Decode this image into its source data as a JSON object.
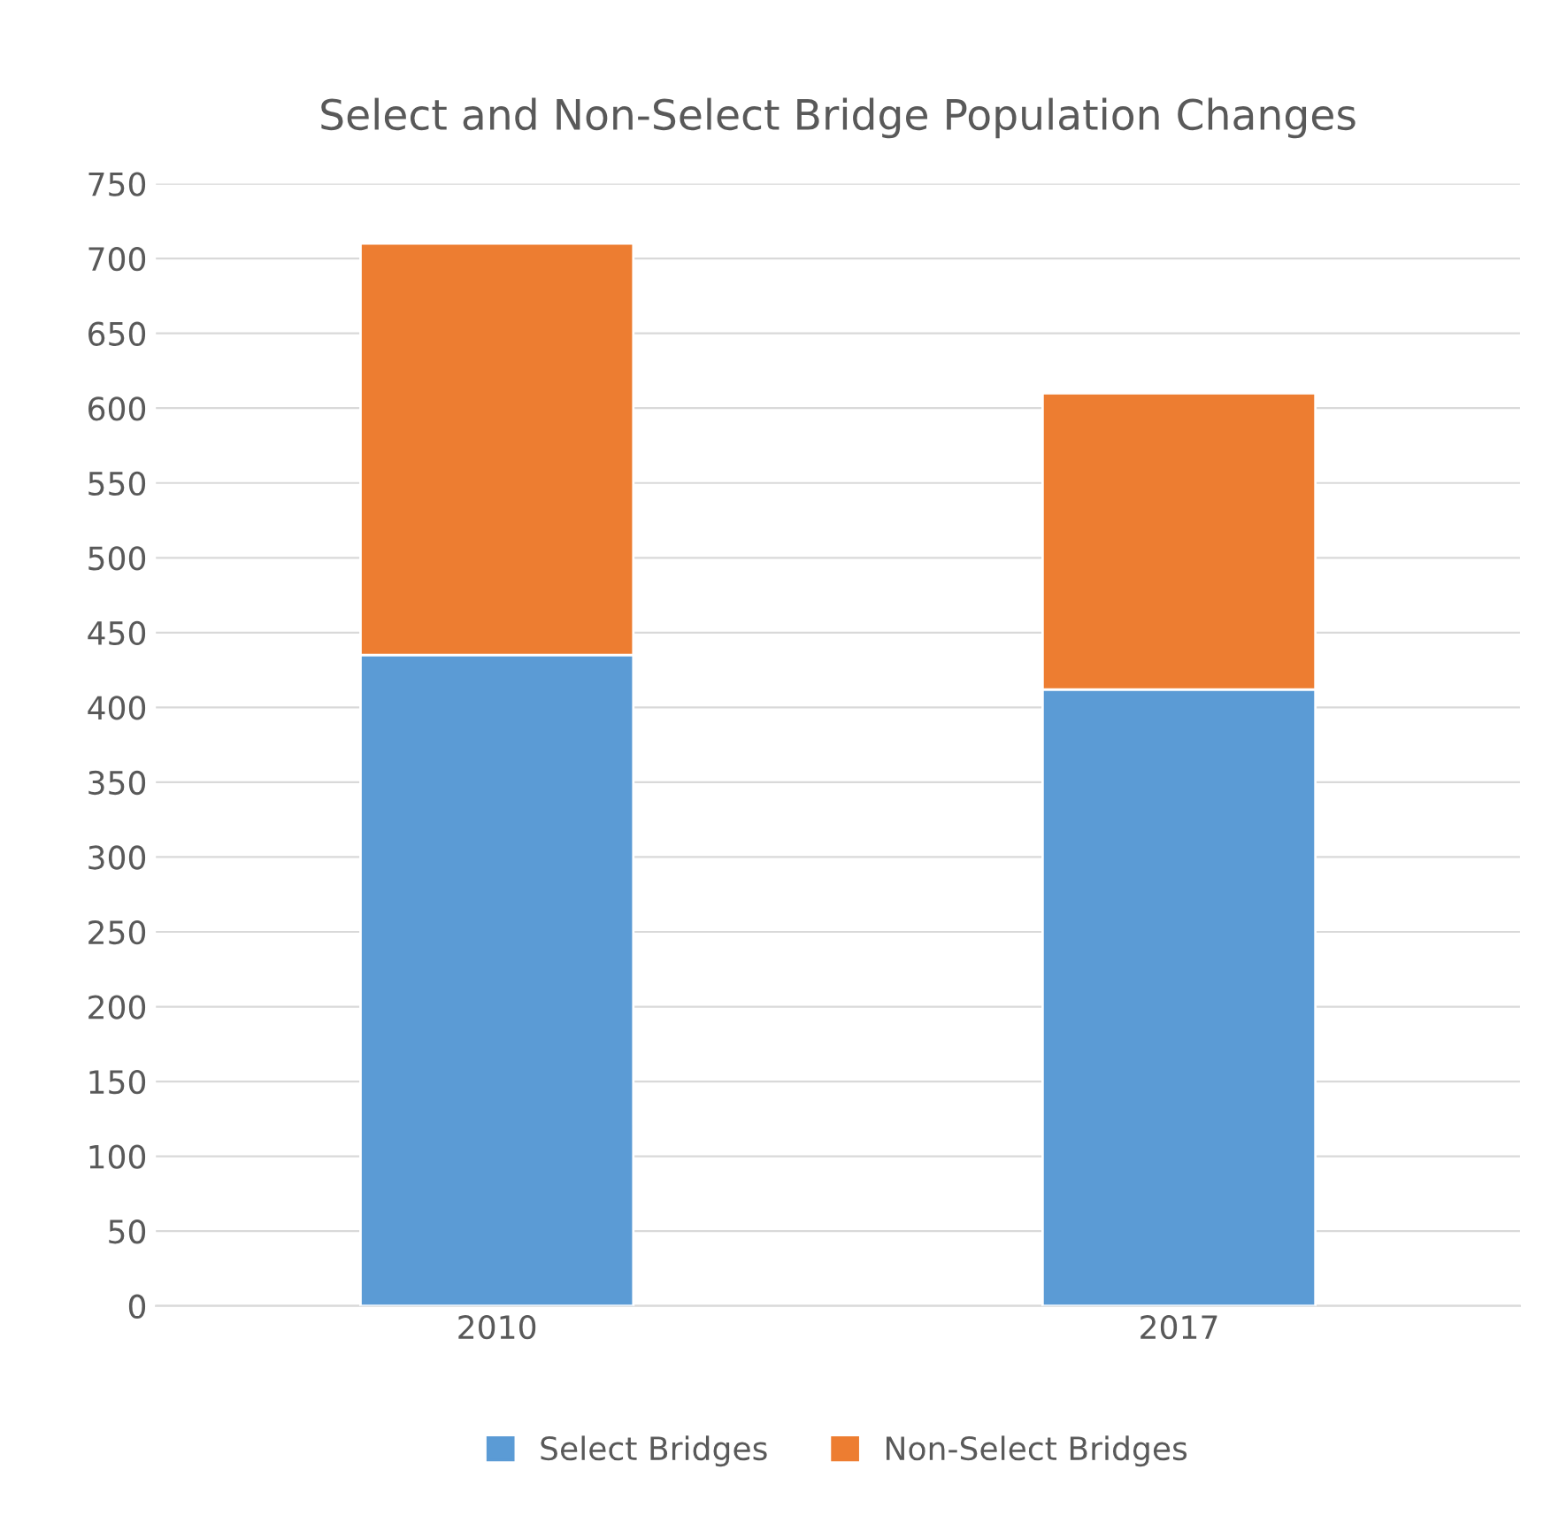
{
  "chart_data": {
    "type": "bar",
    "title": "Select and Non-Select Bridge Population Changes",
    "categories": [
      "2010",
      "2017"
    ],
    "stacked": true,
    "series": [
      {
        "name": "Select Bridges",
        "color": "#5b9bd5",
        "values": [
          435,
          412
        ]
      },
      {
        "name": "Non-Select Bridges",
        "color": "#ed7d31",
        "values": [
          275,
          198
        ]
      }
    ],
    "ylim": [
      0,
      750
    ],
    "yticks": [
      0,
      50,
      100,
      150,
      200,
      250,
      300,
      350,
      400,
      450,
      500,
      550,
      600,
      650,
      700,
      750
    ],
    "grid": "y",
    "legend": "bottom"
  }
}
